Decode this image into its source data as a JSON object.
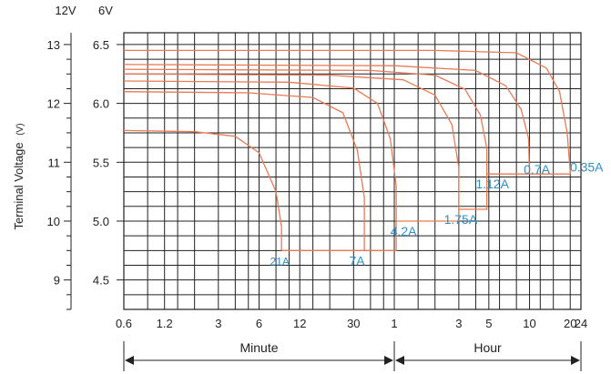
{
  "chart_data": {
    "type": "line",
    "title": "",
    "ylabel": "Terminal Voltage",
    "ylabel_unit": "(V)",
    "y_axis_12v": {
      "header": "12V",
      "ticks": [
        "13",
        "12",
        "11",
        "10",
        "9"
      ],
      "values": [
        13,
        12,
        11,
        10,
        9
      ]
    },
    "y_axis_6v": {
      "header": "6V",
      "ticks": [
        "6.5",
        "6.0",
        "5.5",
        "5.0",
        "4.5"
      ],
      "values": [
        6.5,
        6.0,
        5.5,
        5.0,
        4.5
      ]
    },
    "ylim_6v": [
      4.25,
      6.6
    ],
    "x_scale": "log",
    "x_unit_note": "discharge time in minutes (log scale)",
    "xlim_minutes": [
      0.6,
      1440
    ],
    "x_ticks": [
      {
        "label": "0.6",
        "minutes": 0.6
      },
      {
        "label": "1.2",
        "minutes": 1.2
      },
      {
        "label": "3",
        "minutes": 3
      },
      {
        "label": "6",
        "minutes": 6
      },
      {
        "label": "12",
        "minutes": 12
      },
      {
        "label": "30",
        "minutes": 30
      },
      {
        "label": "1",
        "minutes": 60
      },
      {
        "label": "3",
        "minutes": 180
      },
      {
        "label": "5",
        "minutes": 300
      },
      {
        "label": "10",
        "minutes": 600
      },
      {
        "label": "20",
        "minutes": 1200
      },
      {
        "label": "24",
        "minutes": 1440
      }
    ],
    "grid_minutes": [
      0.6,
      0.9,
      1.2,
      1.5,
      2,
      3,
      4,
      5,
      6,
      8,
      10,
      12,
      15,
      20,
      30,
      40,
      50,
      60,
      90,
      120,
      180,
      240,
      300,
      360,
      480,
      600,
      720,
      900,
      1200,
      1440
    ],
    "grid_volts_6v": [
      4.25,
      4.375,
      4.5,
      4.625,
      4.75,
      4.875,
      5.0,
      5.125,
      5.25,
      5.375,
      5.5,
      5.625,
      5.75,
      5.875,
      6.0,
      6.125,
      6.25,
      6.375,
      6.5,
      6.6
    ],
    "series": [
      {
        "name": "21A",
        "x": [
          0.6,
          2,
          4,
          6,
          8,
          8.8,
          8.8
        ],
        "y": [
          5.77,
          5.76,
          5.72,
          5.58,
          5.25,
          4.95,
          4.75
        ]
      },
      {
        "name": "7A",
        "x": [
          0.6,
          5,
          15,
          25,
          32,
          36,
          36
        ],
        "y": [
          6.1,
          6.09,
          6.05,
          5.92,
          5.6,
          5.2,
          4.75
        ]
      },
      {
        "name": "4.2A",
        "x": [
          0.6,
          10,
          30,
          45,
          56,
          62,
          62
        ],
        "y": [
          6.19,
          6.18,
          6.13,
          6.0,
          5.7,
          5.3,
          5.0
        ]
      },
      {
        "name": "1.75A",
        "x": [
          0.6,
          20,
          70,
          120,
          160,
          180,
          180
        ],
        "y": [
          6.25,
          6.24,
          6.2,
          6.07,
          5.82,
          5.45,
          5.1
        ]
      },
      {
        "name": "1.12A",
        "x": [
          0.6,
          40,
          120,
          200,
          260,
          290,
          290
        ],
        "y": [
          6.29,
          6.28,
          6.24,
          6.12,
          5.9,
          5.62,
          5.4
        ]
      },
      {
        "name": "0.7A",
        "x": [
          0.6,
          60,
          240,
          400,
          520,
          590,
          600
        ],
        "y": [
          6.33,
          6.32,
          6.28,
          6.15,
          5.95,
          5.7,
          5.4
        ]
      },
      {
        "name": "0.35A",
        "x": [
          0.6,
          120,
          480,
          800,
          1000,
          1140,
          1200
        ],
        "y": [
          6.45,
          6.45,
          6.43,
          6.3,
          6.1,
          5.75,
          5.42
        ]
      }
    ],
    "series_label_color": "#2e8fc9",
    "curve_color": "#e87a55",
    "annotations": [
      {
        "text": "Minute",
        "from_minutes": 0.6,
        "to_minutes": 60
      },
      {
        "text": "Hour",
        "from_minutes": 60,
        "to_minutes": 1440
      }
    ]
  }
}
